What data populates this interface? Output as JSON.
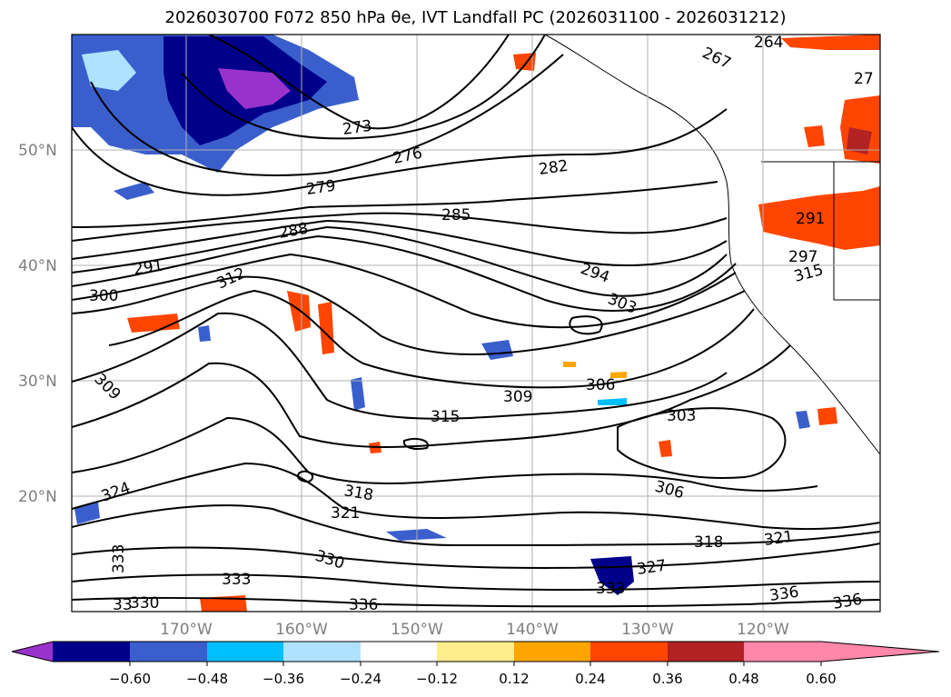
{
  "title": "2026030700 F072 850 hPa θe, IVT Landfall PC (2026031100 - 2026031212)",
  "map": {
    "lat_labels": [
      "50°N",
      "40°N",
      "30°N",
      "20°N"
    ],
    "lon_labels": [
      "170°W",
      "160°W",
      "150°W",
      "140°W",
      "130°W",
      "120°W"
    ],
    "contour_labels": [
      {
        "text": "264"
      },
      {
        "text": "267"
      },
      {
        "text": "27"
      },
      {
        "text": "273"
      },
      {
        "text": "276"
      },
      {
        "text": "279"
      },
      {
        "text": "282"
      },
      {
        "text": "285"
      },
      {
        "text": "288"
      },
      {
        "text": "291"
      },
      {
        "text": "291"
      },
      {
        "text": "294"
      },
      {
        "text": "297"
      },
      {
        "text": "300"
      },
      {
        "text": "303"
      },
      {
        "text": "303"
      },
      {
        "text": "306"
      },
      {
        "text": "306"
      },
      {
        "text": "309"
      },
      {
        "text": "309"
      },
      {
        "text": "312"
      },
      {
        "text": "315"
      },
      {
        "text": "315"
      },
      {
        "text": "318"
      },
      {
        "text": "318"
      },
      {
        "text": "321"
      },
      {
        "text": "321"
      },
      {
        "text": "324"
      },
      {
        "text": "327"
      },
      {
        "text": "330"
      },
      {
        "text": "330"
      },
      {
        "text": "333"
      },
      {
        "text": "333"
      },
      {
        "text": "333"
      },
      {
        "text": "336"
      },
      {
        "text": "336"
      },
      {
        "text": "336"
      },
      {
        "text": "33"
      }
    ]
  },
  "colorbar": {
    "ticks": [
      "−0.60",
      "−0.48",
      "−0.36",
      "−0.24",
      "−0.12",
      "0.12",
      "0.24",
      "0.36",
      "0.48",
      "0.60"
    ],
    "colors": [
      "#9932cc",
      "#00008b",
      "#3a5fcd",
      "#00bfff",
      "#b0e2ff",
      "#ffffff",
      "#ffec8b",
      "#ffa500",
      "#ff4500",
      "#b22222",
      "#ff88aa"
    ]
  }
}
